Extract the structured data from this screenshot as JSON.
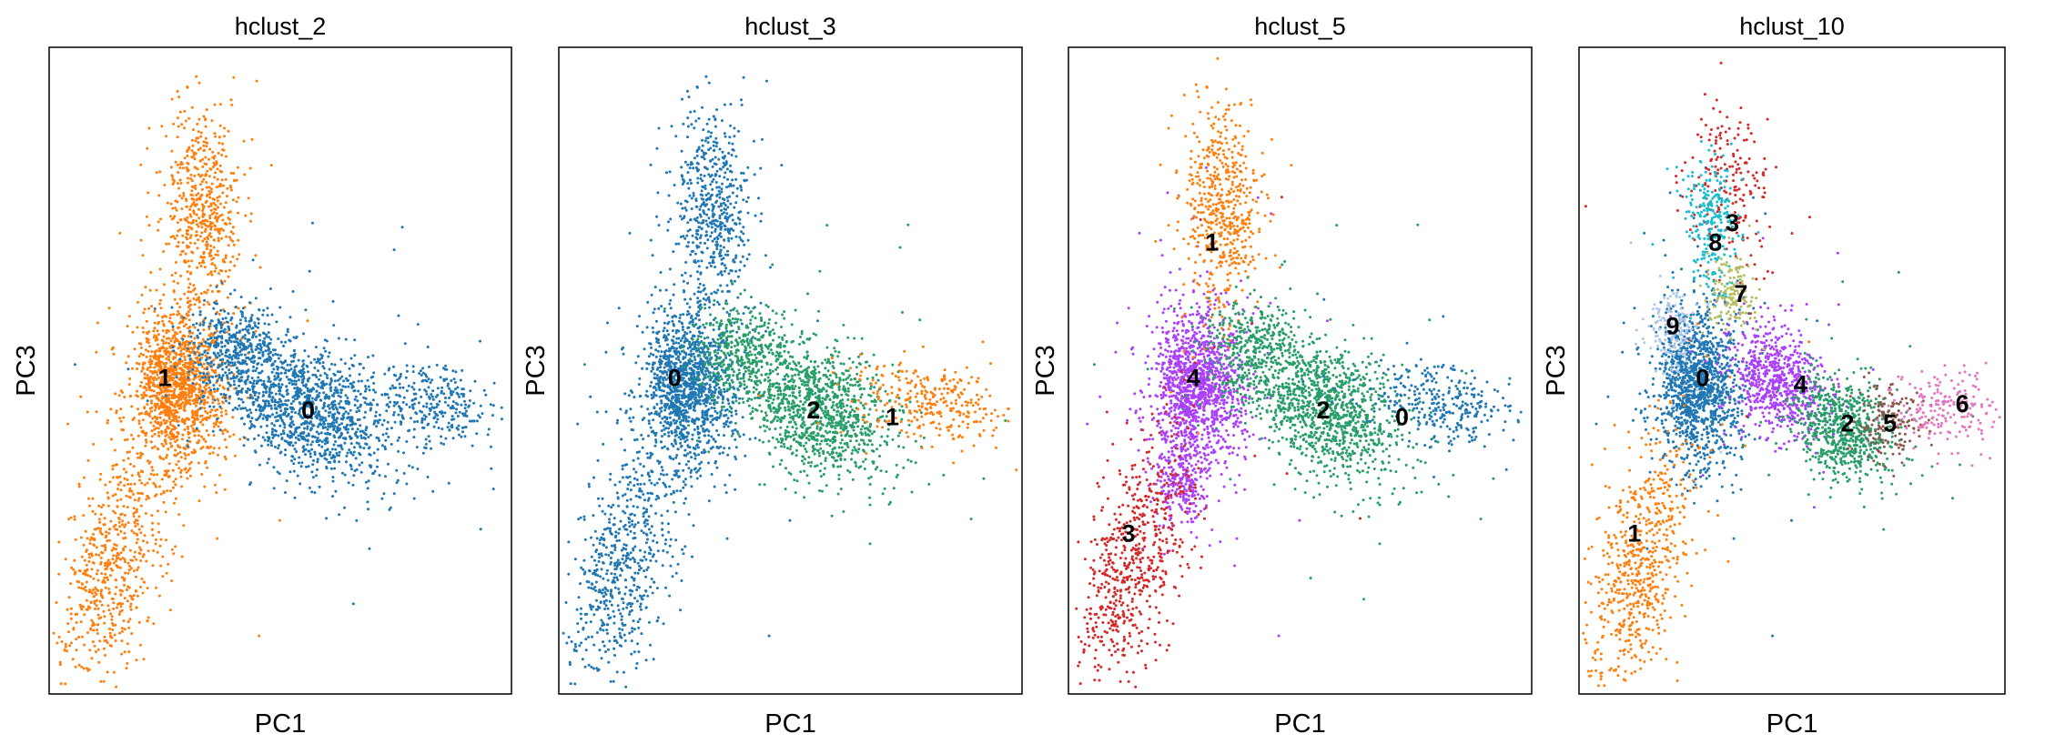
{
  "chart_data": [
    {
      "type": "scatter",
      "title": "hclust_2",
      "xlabel": "PC1",
      "ylabel": "PC3",
      "xlim": [
        0,
        100
      ],
      "ylim": [
        0,
        100
      ],
      "grid": false,
      "legend": "on data",
      "series": [
        {
          "name": "0",
          "color": "#1f77b4"
        },
        {
          "name": "1",
          "color": "#ff7f0e"
        }
      ],
      "clusters": [
        {
          "label": "1",
          "color": "#ff7f0e",
          "n": 1300,
          "x": 28,
          "y": 48,
          "sx": 5,
          "sy": 6,
          "rot": 0
        },
        {
          "label": "1",
          "color": "#ff7f0e",
          "n": 550,
          "x": 33,
          "y": 75,
          "sx": 4,
          "sy": 8,
          "rot": 0
        },
        {
          "label": "1",
          "color": "#ff7f0e",
          "n": 650,
          "x": 14,
          "y": 20,
          "sx": 5,
          "sy": 11,
          "rot": -25
        },
        {
          "label": "0",
          "color": "#1f77b4",
          "n": 1200,
          "x": 56,
          "y": 44,
          "sx": 9,
          "sy": 5,
          "rot": -20
        },
        {
          "label": "0",
          "color": "#1f77b4",
          "n": 450,
          "x": 40,
          "y": 53,
          "sx": 5,
          "sy": 4,
          "rot": 0
        },
        {
          "label": "0",
          "color": "#1f77b4",
          "n": 300,
          "x": 83,
          "y": 45,
          "sx": 7,
          "sy": 3,
          "rot": -5
        }
      ],
      "annotations": [
        {
          "text": "1",
          "x": 25,
          "y": 49
        },
        {
          "text": "0",
          "x": 56,
          "y": 44
        }
      ]
    },
    {
      "type": "scatter",
      "title": "hclust_3",
      "xlabel": "PC1",
      "ylabel": "PC3",
      "xlim": [
        0,
        100
      ],
      "ylim": [
        0,
        100
      ],
      "grid": false,
      "legend": "on data",
      "series": [
        {
          "name": "0",
          "color": "#1f77b4"
        },
        {
          "name": "1",
          "color": "#ff7f0e"
        },
        {
          "name": "2",
          "color": "#279e68"
        }
      ],
      "clusters": [
        {
          "label": "0",
          "color": "#1f77b4",
          "n": 1300,
          "x": 28,
          "y": 48,
          "sx": 5,
          "sy": 6,
          "rot": 0
        },
        {
          "label": "0",
          "color": "#1f77b4",
          "n": 550,
          "x": 33,
          "y": 75,
          "sx": 4,
          "sy": 8,
          "rot": 0
        },
        {
          "label": "0",
          "color": "#1f77b4",
          "n": 650,
          "x": 14,
          "y": 20,
          "sx": 5,
          "sy": 11,
          "rot": -25
        },
        {
          "label": "2",
          "color": "#279e68",
          "n": 1100,
          "x": 56,
          "y": 44,
          "sx": 8,
          "sy": 5,
          "rot": -20
        },
        {
          "label": "2",
          "color": "#279e68",
          "n": 400,
          "x": 40,
          "y": 53,
          "sx": 5,
          "sy": 4,
          "rot": 0
        },
        {
          "label": "1",
          "color": "#ff7f0e",
          "n": 300,
          "x": 80,
          "y": 45,
          "sx": 8,
          "sy": 3,
          "rot": -5
        }
      ],
      "annotations": [
        {
          "text": "0",
          "x": 25,
          "y": 49
        },
        {
          "text": "2",
          "x": 55,
          "y": 44
        },
        {
          "text": "1",
          "x": 72,
          "y": 43
        }
      ]
    },
    {
      "type": "scatter",
      "title": "hclust_5",
      "xlabel": "PC1",
      "ylabel": "PC3",
      "xlim": [
        0,
        100
      ],
      "ylim": [
        0,
        100
      ],
      "grid": false,
      "legend": "on data",
      "series": [
        {
          "name": "0",
          "color": "#1f77b4"
        },
        {
          "name": "1",
          "color": "#ff7f0e"
        },
        {
          "name": "2",
          "color": "#279e68"
        },
        {
          "name": "3",
          "color": "#d62728"
        },
        {
          "name": "4",
          "color": "#aa40fc"
        }
      ],
      "clusters": [
        {
          "label": "4",
          "color": "#aa40fc",
          "n": 1300,
          "x": 28,
          "y": 48,
          "sx": 5,
          "sy": 6,
          "rot": 0
        },
        {
          "label": "4",
          "color": "#aa40fc",
          "n": 250,
          "x": 24,
          "y": 33,
          "sx": 3,
          "sy": 4,
          "rot": 0
        },
        {
          "label": "1",
          "color": "#ff7f0e",
          "n": 550,
          "x": 33,
          "y": 75,
          "sx": 4,
          "sy": 8,
          "rot": 0
        },
        {
          "label": "3",
          "color": "#d62728",
          "n": 650,
          "x": 14,
          "y": 20,
          "sx": 5,
          "sy": 11,
          "rot": -25
        },
        {
          "label": "2",
          "color": "#279e68",
          "n": 1100,
          "x": 56,
          "y": 44,
          "sx": 8,
          "sy": 5,
          "rot": -20
        },
        {
          "label": "2",
          "color": "#279e68",
          "n": 400,
          "x": 40,
          "y": 53,
          "sx": 5,
          "sy": 4,
          "rot": 0
        },
        {
          "label": "0",
          "color": "#1f77b4",
          "n": 300,
          "x": 80,
          "y": 45,
          "sx": 8,
          "sy": 3,
          "rot": -5
        }
      ],
      "annotations": [
        {
          "text": "1",
          "x": 31,
          "y": 70
        },
        {
          "text": "4",
          "x": 27,
          "y": 49
        },
        {
          "text": "2",
          "x": 55,
          "y": 44
        },
        {
          "text": "0",
          "x": 72,
          "y": 43
        },
        {
          "text": "3",
          "x": 13,
          "y": 25
        }
      ]
    },
    {
      "type": "scatter",
      "title": "hclust_10",
      "xlabel": "PC1",
      "ylabel": "PC3",
      "xlim": [
        0,
        100
      ],
      "ylim": [
        0,
        100
      ],
      "grid": false,
      "legend": "on data",
      "series": [
        {
          "name": "0",
          "color": "#1f77b4"
        },
        {
          "name": "1",
          "color": "#ff7f0e"
        },
        {
          "name": "2",
          "color": "#279e68"
        },
        {
          "name": "3",
          "color": "#d62728"
        },
        {
          "name": "4",
          "color": "#aa40fc"
        },
        {
          "name": "5",
          "color": "#8c564b"
        },
        {
          "name": "6",
          "color": "#e377c2"
        },
        {
          "name": "7",
          "color": "#b5bd61"
        },
        {
          "name": "8",
          "color": "#17becf"
        },
        {
          "name": "9",
          "color": "#aec7e8"
        }
      ],
      "clusters": [
        {
          "label": "0",
          "color": "#1f77b4",
          "n": 1300,
          "x": 28,
          "y": 48,
          "sx": 5,
          "sy": 6,
          "rot": 0
        },
        {
          "label": "1",
          "color": "#ff7f0e",
          "n": 650,
          "x": 14,
          "y": 20,
          "sx": 5,
          "sy": 11,
          "rot": -25
        },
        {
          "label": "4",
          "color": "#aa40fc",
          "n": 700,
          "x": 47,
          "y": 48,
          "sx": 6,
          "sy": 4,
          "rot": -20
        },
        {
          "label": "2",
          "color": "#279e68",
          "n": 700,
          "x": 62,
          "y": 41,
          "sx": 6,
          "sy": 4,
          "rot": -15
        },
        {
          "label": "5",
          "color": "#8c564b",
          "n": 150,
          "x": 73,
          "y": 42,
          "sx": 4,
          "sy": 3,
          "rot": 0
        },
        {
          "label": "6",
          "color": "#e377c2",
          "n": 200,
          "x": 86,
          "y": 44,
          "sx": 6,
          "sy": 3,
          "rot": 0
        },
        {
          "label": "3",
          "color": "#d62728",
          "n": 200,
          "x": 36,
          "y": 79,
          "sx": 5,
          "sy": 7,
          "rot": 0
        },
        {
          "label": "8",
          "color": "#17becf",
          "n": 250,
          "x": 31,
          "y": 73,
          "sx": 3,
          "sy": 5,
          "rot": 0
        },
        {
          "label": "7",
          "color": "#b5bd61",
          "n": 150,
          "x": 36,
          "y": 62,
          "sx": 3,
          "sy": 3,
          "rot": 0
        },
        {
          "label": "9",
          "color": "#aec7e8",
          "n": 150,
          "x": 22,
          "y": 56,
          "sx": 3,
          "sy": 3,
          "rot": 0
        }
      ],
      "annotations": [
        {
          "text": "3",
          "x": 36,
          "y": 73
        },
        {
          "text": "8",
          "x": 32,
          "y": 70
        },
        {
          "text": "7",
          "x": 38,
          "y": 62
        },
        {
          "text": "9",
          "x": 22,
          "y": 57
        },
        {
          "text": "0",
          "x": 29,
          "y": 49
        },
        {
          "text": "4",
          "x": 52,
          "y": 48
        },
        {
          "text": "2",
          "x": 63,
          "y": 42
        },
        {
          "text": "5",
          "x": 73,
          "y": 42
        },
        {
          "text": "6",
          "x": 90,
          "y": 45
        },
        {
          "text": "1",
          "x": 13,
          "y": 25
        }
      ]
    }
  ]
}
